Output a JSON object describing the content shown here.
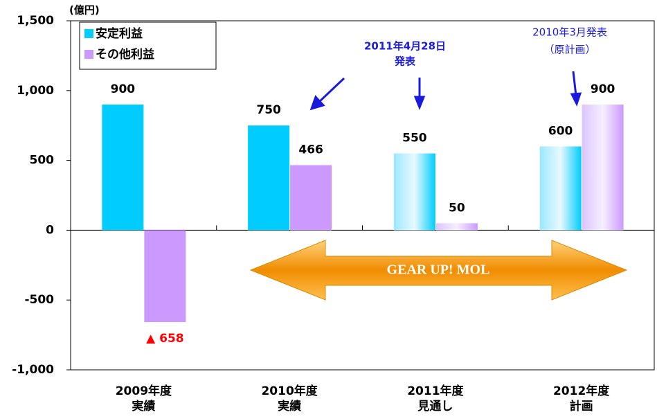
{
  "chart_data": {
    "type": "bar",
    "unit_label": "(億円)",
    "categories": [
      [
        "2009年度",
        "実績"
      ],
      [
        "2010年度",
        "実績"
      ],
      [
        "2011年度",
        "見通し"
      ],
      [
        "2012年度",
        "計画"
      ]
    ],
    "series": [
      {
        "name": "安定利益",
        "color": "#00ccff",
        "values": [
          900,
          750,
          550,
          600
        ]
      },
      {
        "name": "その他利益",
        "color": "#cc99ff",
        "values": [
          -658,
          466,
          50,
          900
        ],
        "value_labels": [
          "▲ 658",
          "466",
          "50",
          "900"
        ]
      }
    ],
    "negative_label_color": "#ff0000",
    "ylim": [
      -1000,
      1500
    ],
    "yticks": [
      {
        "value": -1000,
        "label": "-1,000"
      },
      -500,
      0,
      500,
      {
        "value": 1000,
        "label": "1,000"
      },
      {
        "value": 1500,
        "label": "1,500"
      }
    ],
    "annotations": [
      [
        "2011年4月28日",
        "発表"
      ],
      [
        "2010年3月発表",
        "（原計画）"
      ]
    ],
    "banner": "GEAR UP! MOL"
  }
}
